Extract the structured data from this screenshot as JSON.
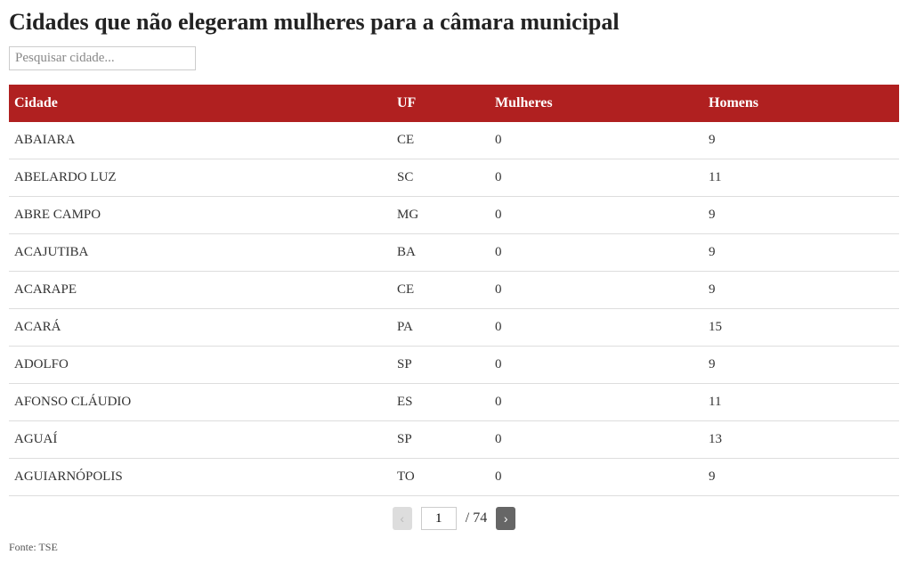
{
  "title": "Cidades que não elegeram mulheres para a câmara municipal",
  "search": {
    "placeholder": "Pesquisar cidade..."
  },
  "table": {
    "header_bg": "#b02020",
    "header_color": "#ffffff",
    "row_border_color": "#dddddd",
    "columns": {
      "cidade": "Cidade",
      "uf": "UF",
      "mulheres": "Mulheres",
      "homens": "Homens"
    },
    "rows": [
      {
        "cidade": "ABAIARA",
        "uf": "CE",
        "mulheres": "0",
        "homens": "9"
      },
      {
        "cidade": "ABELARDO LUZ",
        "uf": "SC",
        "mulheres": "0",
        "homens": "11"
      },
      {
        "cidade": "ABRE CAMPO",
        "uf": "MG",
        "mulheres": "0",
        "homens": "9"
      },
      {
        "cidade": "ACAJUTIBA",
        "uf": "BA",
        "mulheres": "0",
        "homens": "9"
      },
      {
        "cidade": "ACARAPE",
        "uf": "CE",
        "mulheres": "0",
        "homens": "9"
      },
      {
        "cidade": "ACARÁ",
        "uf": "PA",
        "mulheres": "0",
        "homens": "15"
      },
      {
        "cidade": "ADOLFO",
        "uf": "SP",
        "mulheres": "0",
        "homens": "9"
      },
      {
        "cidade": "AFONSO CLÁUDIO",
        "uf": "ES",
        "mulheres": "0",
        "homens": "11"
      },
      {
        "cidade": "AGUAÍ",
        "uf": "SP",
        "mulheres": "0",
        "homens": "13"
      },
      {
        "cidade": "AGUIARNÓPOLIS",
        "uf": "TO",
        "mulheres": "0",
        "homens": "9"
      }
    ]
  },
  "pagination": {
    "prev_label": "‹",
    "next_label": "›",
    "current_page": "1",
    "total_pages": "74",
    "separator": "/ "
  },
  "footer": {
    "source": "Fonte: TSE"
  }
}
